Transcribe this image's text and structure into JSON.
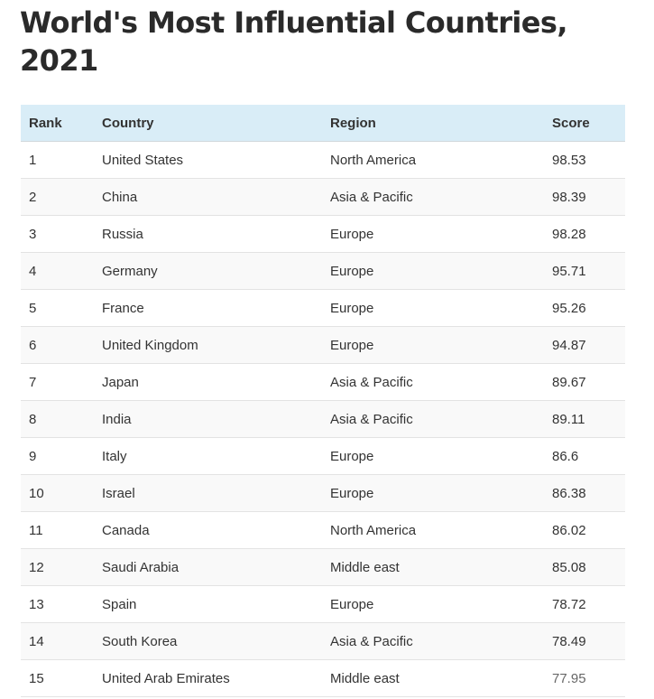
{
  "title": "World's Most Influential Countries, 2021",
  "table": {
    "headers": [
      "Rank",
      "Country",
      "Region",
      "Score"
    ],
    "rows": [
      [
        "1",
        "United States",
        "North America",
        "98.53"
      ],
      [
        "2",
        "China",
        "Asia & Pacific",
        "98.39"
      ],
      [
        "3",
        "Russia",
        "Europe",
        "98.28"
      ],
      [
        "4",
        "Germany",
        "Europe",
        "95.71"
      ],
      [
        "5",
        "France",
        "Europe",
        "95.26"
      ],
      [
        "6",
        "United Kingdom",
        "Europe",
        "94.87"
      ],
      [
        "7",
        "Japan",
        "Asia & Pacific",
        "89.67"
      ],
      [
        "8",
        "India",
        "Asia & Pacific",
        "89.11"
      ],
      [
        "9",
        "Italy",
        "Europe",
        "86.6"
      ],
      [
        "10",
        "Israel",
        "Europe",
        "86.38"
      ],
      [
        "11",
        "Canada",
        "North America",
        "86.02"
      ],
      [
        "12",
        "Saudi Arabia",
        "Middle east",
        "85.08"
      ],
      [
        "13",
        "Spain",
        "Europe",
        "78.72"
      ],
      [
        "14",
        "South Korea",
        "Asia & Pacific",
        "78.49"
      ],
      [
        "15",
        "United Arab Emirates",
        "Middle east",
        "77.95"
      ]
    ]
  },
  "colors": {
    "header_background": "#d9edf7",
    "row_stripe": "#f9f9f9",
    "text": "#333333"
  }
}
